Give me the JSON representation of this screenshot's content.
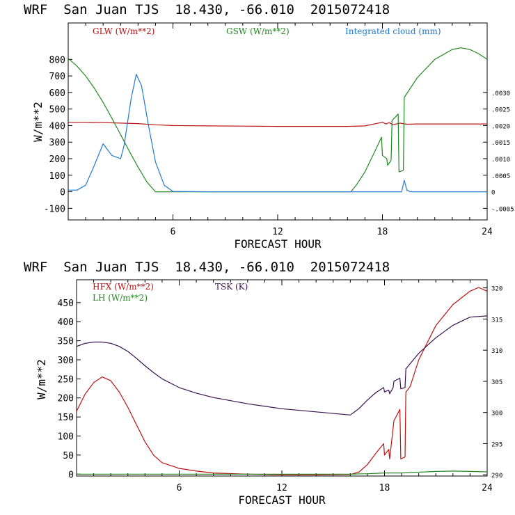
{
  "chart_data": [
    {
      "type": "line",
      "title": "WRF  San Juan TJS  18.430, -66.010  2015072418",
      "xlabel": "FORECAST HOUR",
      "ylabel": "W/m**2",
      "xlim": [
        0,
        24
      ],
      "ylim": [
        -170,
        1020
      ],
      "y2lim": [
        -0.00085,
        0.0051
      ],
      "x_ticks": [
        6,
        12,
        18,
        24
      ],
      "y_ticks": [
        -100,
        0,
        100,
        200,
        300,
        400,
        500,
        600,
        700,
        800
      ],
      "y2_ticks": [
        {
          "value": -0.0005,
          "label": "-.0005"
        },
        {
          "value": 0,
          "label": "0"
        },
        {
          "value": 0.0005,
          "label": ".0005"
        },
        {
          "value": 0.001,
          "label": ".0010"
        },
        {
          "value": 0.0015,
          "label": ".0015"
        },
        {
          "value": 0.002,
          "label": ".0020"
        },
        {
          "value": 0.0025,
          "label": ".0025"
        },
        {
          "value": 0.003,
          "label": ".0030"
        }
      ],
      "grid": false,
      "legend_position": "top",
      "series": [
        {
          "name": "GLW (W/m**2)",
          "color": "#bb1111",
          "axis": "left",
          "x": [
            0,
            1,
            2,
            3,
            4,
            5,
            6,
            8,
            10,
            12,
            14,
            16,
            17,
            18,
            18.2,
            18.4,
            18.6,
            19,
            19.4,
            20,
            22,
            24
          ],
          "y": [
            420,
            420,
            418,
            415,
            412,
            405,
            400,
            398,
            397,
            395,
            395,
            395,
            398,
            420,
            410,
            418,
            405,
            415,
            408,
            410,
            410,
            410
          ]
        },
        {
          "name": "GSW (W/m**2)",
          "color": "#228822",
          "axis": "left",
          "x": [
            0,
            0.5,
            1,
            1.5,
            2,
            2.5,
            3,
            3.5,
            4,
            4.5,
            5,
            6,
            8,
            10,
            12,
            14,
            16.2,
            16.5,
            17,
            17.5,
            17.95,
            18.0,
            18.25,
            18.3,
            18.5,
            18.55,
            18.9,
            18.95,
            19.2,
            19.25,
            20,
            21,
            22,
            22.5,
            23,
            23.5,
            24
          ],
          "y": [
            805,
            760,
            700,
            625,
            540,
            445,
            345,
            245,
            150,
            60,
            0,
            0,
            0,
            0,
            0,
            0,
            0,
            40,
            120,
            230,
            330,
            220,
            200,
            160,
            190,
            430,
            470,
            120,
            130,
            570,
            690,
            800,
            860,
            870,
            860,
            835,
            800
          ]
        },
        {
          "name": "Integrated cloud (mm)",
          "color": "#1e78d2",
          "axis": "right",
          "x": [
            0,
            0.5,
            1,
            1.5,
            2,
            2.5,
            3,
            3.2,
            3.6,
            3.9,
            4.2,
            4.6,
            5,
            5.5,
            6,
            8,
            12,
            16,
            19.1,
            19.25,
            19.4,
            19.6,
            20,
            24
          ],
          "y": [
            5e-05,
            5e-05,
            0.0002,
            0.0008,
            0.00145,
            0.0011,
            0.001,
            0.0014,
            0.0028,
            0.00355,
            0.0032,
            0.002,
            0.0009,
            0.0002,
            1e-05,
            0,
            0,
            0,
            0,
            0.00035,
            5e-05,
            0,
            0,
            0
          ]
        }
      ]
    },
    {
      "type": "line",
      "title": "WRF  San Juan TJS  18.430, -66.010  2015072418",
      "xlabel": "FORECAST HOUR",
      "ylabel": "W/m**2",
      "xlim": [
        0,
        24
      ],
      "ylim": [
        -5,
        510
      ],
      "y2lim": [
        289.8,
        321.3
      ],
      "x_ticks": [
        6,
        12,
        18,
        24
      ],
      "y_ticks": [
        0,
        50,
        100,
        150,
        200,
        250,
        300,
        350,
        400,
        450
      ],
      "y2_ticks": [
        {
          "value": 290,
          "label": "290"
        },
        {
          "value": 295,
          "label": "295"
        },
        {
          "value": 300,
          "label": "300"
        },
        {
          "value": 305,
          "label": "305"
        },
        {
          "value": 310,
          "label": "310"
        },
        {
          "value": 315,
          "label": "315"
        },
        {
          "value": 320,
          "label": "320"
        }
      ],
      "grid": false,
      "legend_position": "top",
      "series": [
        {
          "name": "HFX (W/m**2)",
          "color": "#bb1111",
          "axis": "left",
          "x": [
            0,
            0.5,
            1,
            1.5,
            2,
            2.5,
            3,
            3.5,
            4,
            4.5,
            5,
            6,
            7,
            8,
            10,
            12,
            14,
            16,
            16.5,
            17,
            17.5,
            17.95,
            18.0,
            18.25,
            18.3,
            18.5,
            18.55,
            18.9,
            18.95,
            19.2,
            19.25,
            19.5,
            20,
            21,
            22,
            23,
            23.5,
            24
          ],
          "y": [
            165,
            210,
            240,
            255,
            245,
            215,
            175,
            130,
            85,
            50,
            30,
            15,
            8,
            3,
            0,
            -2,
            -2,
            -1,
            5,
            25,
            55,
            80,
            50,
            65,
            40,
            120,
            140,
            170,
            40,
            45,
            215,
            230,
            300,
            390,
            445,
            480,
            490,
            480
          ]
        },
        {
          "name": "LH  (W/m**2)",
          "color": "#228822",
          "axis": "left",
          "x": [
            0,
            4,
            8,
            12,
            16,
            17,
            18,
            19,
            20,
            21,
            22,
            23,
            24
          ],
          "y": [
            0,
            0,
            0,
            0,
            0,
            1,
            3,
            3,
            5,
            7,
            8,
            7,
            6
          ]
        },
        {
          "name": "TSK (K)",
          "color": "#3a1050",
          "axis": "right",
          "x": [
            0,
            0.5,
            1,
            1.5,
            2,
            2.5,
            3,
            3.5,
            4,
            4.5,
            5,
            6,
            7,
            8,
            9,
            10,
            12,
            14,
            16,
            16.5,
            17,
            17.5,
            17.95,
            18.0,
            18.25,
            18.3,
            18.5,
            18.55,
            18.9,
            18.95,
            19.2,
            19.25,
            20,
            21,
            22,
            23,
            24
          ],
          "y": [
            310.6,
            311.1,
            311.3,
            311.3,
            311.1,
            310.6,
            309.8,
            308.7,
            307.5,
            306.4,
            305.4,
            304.0,
            303.1,
            302.4,
            301.9,
            301.4,
            300.6,
            300.1,
            299.6,
            300.6,
            302.0,
            303.2,
            304.0,
            303.3,
            303.6,
            303.0,
            304.0,
            305.0,
            305.5,
            303.8,
            304.0,
            307.0,
            309.5,
            312.0,
            314.0,
            315.3,
            315.5
          ]
        }
      ]
    }
  ]
}
